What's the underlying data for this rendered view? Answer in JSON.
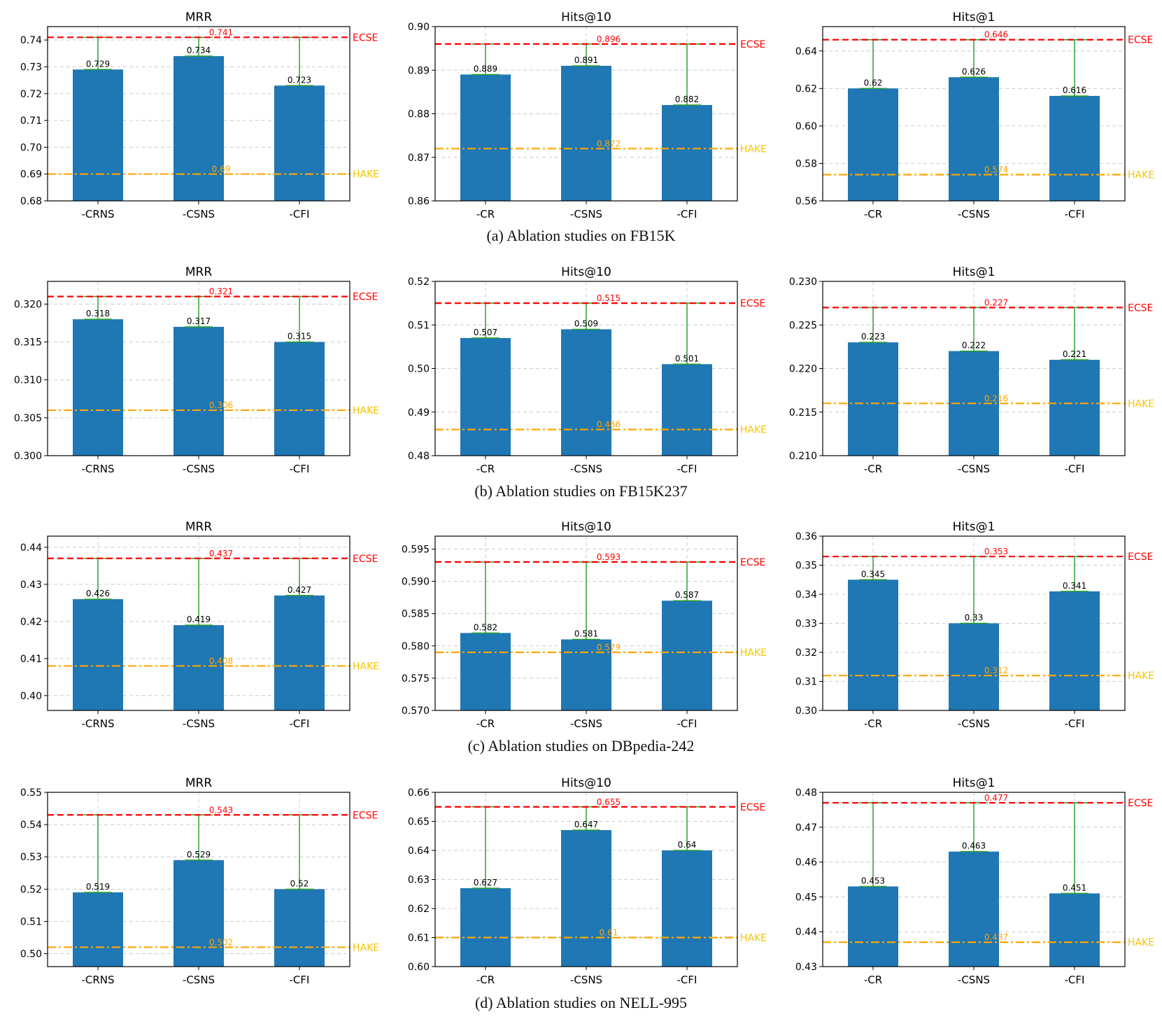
{
  "colors": {
    "bar": "#1f77b4",
    "ecse": "#ff0000",
    "hake": "#ffa500",
    "hake_label": "#f5c400",
    "error": "#2ca02c",
    "grid": "#cccccc"
  },
  "captions": [
    "(a) Ablation studies on FB15K",
    "(b) Ablation studies on FB15K237",
    "(c) Ablation studies on DBpedia-242",
    "(d) Ablation studies on NELL-995"
  ],
  "chart_data": [
    {
      "type": "bar",
      "title": "MRR",
      "categories": [
        "-CRNS",
        "-CSNS",
        "-CFI"
      ],
      "values": [
        0.729,
        0.734,
        0.723
      ],
      "value_labels": [
        "0.729",
        "0.734",
        "0.723"
      ],
      "ylim": [
        0.68,
        0.745
      ],
      "yticks": [
        "0.68",
        "0.69",
        "0.70",
        "0.71",
        "0.72",
        "0.73",
        "0.74"
      ],
      "reference_lines": [
        {
          "name": "ECSE",
          "value": 0.741,
          "label": "0.741"
        },
        {
          "name": "HAKE",
          "value": 0.69,
          "label": "0.69"
        }
      ],
      "grid": true
    },
    {
      "type": "bar",
      "title": "Hits@10",
      "categories": [
        "-CR",
        "-CSNS",
        "-CFI"
      ],
      "values": [
        0.889,
        0.891,
        0.882
      ],
      "value_labels": [
        "0.889",
        "0.891",
        "0.882"
      ],
      "ylim": [
        0.86,
        0.9
      ],
      "yticks": [
        "0.86",
        "0.87",
        "0.88",
        "0.89",
        "0.90"
      ],
      "reference_lines": [
        {
          "name": "ECSE",
          "value": 0.896,
          "label": "0.896"
        },
        {
          "name": "HAKE",
          "value": 0.872,
          "label": "0.872"
        }
      ],
      "grid": true
    },
    {
      "type": "bar",
      "title": "Hits@1",
      "categories": [
        "-CR",
        "-CSNS",
        "-CFI"
      ],
      "values": [
        0.62,
        0.626,
        0.616
      ],
      "value_labels": [
        "0.62",
        "0.626",
        "0.616"
      ],
      "ylim": [
        0.56,
        0.653
      ],
      "yticks": [
        "0.56",
        "0.58",
        "0.60",
        "0.62",
        "0.64"
      ],
      "reference_lines": [
        {
          "name": "ECSE",
          "value": 0.646,
          "label": "0.646"
        },
        {
          "name": "HAKE",
          "value": 0.574,
          "label": "0.574"
        }
      ],
      "grid": true
    },
    {
      "type": "bar",
      "title": "MRR",
      "categories": [
        "-CRNS",
        "-CSNS",
        "-CFI"
      ],
      "values": [
        0.318,
        0.317,
        0.315
      ],
      "value_labels": [
        "0.318",
        "0.317",
        "0.315"
      ],
      "ylim": [
        0.3,
        0.323
      ],
      "yticks": [
        "0.300",
        "0.305",
        "0.310",
        "0.315",
        "0.320"
      ],
      "reference_lines": [
        {
          "name": "ECSE",
          "value": 0.321,
          "label": "0.321"
        },
        {
          "name": "HAKE",
          "value": 0.306,
          "label": "0.306"
        }
      ],
      "grid": true
    },
    {
      "type": "bar",
      "title": "Hits@10",
      "categories": [
        "-CR",
        "-CSNS",
        "-CFI"
      ],
      "values": [
        0.507,
        0.509,
        0.501
      ],
      "value_labels": [
        "0.507",
        "0.509",
        "0.501"
      ],
      "ylim": [
        0.48,
        0.52
      ],
      "yticks": [
        "0.48",
        "0.49",
        "0.50",
        "0.51",
        "0.52"
      ],
      "reference_lines": [
        {
          "name": "ECSE",
          "value": 0.515,
          "label": "0.515"
        },
        {
          "name": "HAKE",
          "value": 0.486,
          "label": "0.486"
        }
      ],
      "grid": true
    },
    {
      "type": "bar",
      "title": "Hits@1",
      "categories": [
        "-CR",
        "-CSNS",
        "-CFI"
      ],
      "values": [
        0.223,
        0.222,
        0.221
      ],
      "value_labels": [
        "0.223",
        "0.222",
        "0.221"
      ],
      "ylim": [
        0.21,
        0.23
      ],
      "yticks": [
        "0.210",
        "0.215",
        "0.220",
        "0.225",
        "0.230"
      ],
      "reference_lines": [
        {
          "name": "ECSE",
          "value": 0.227,
          "label": "0.227"
        },
        {
          "name": "HAKE",
          "value": 0.216,
          "label": "0.216"
        }
      ],
      "grid": true
    },
    {
      "type": "bar",
      "title": "MRR",
      "categories": [
        "-CRNS",
        "-CSNS",
        "-CFI"
      ],
      "values": [
        0.426,
        0.419,
        0.427
      ],
      "value_labels": [
        "0.426",
        "0.419",
        "0.427"
      ],
      "ylim": [
        0.396,
        0.443
      ],
      "yticks": [
        "0.40",
        "0.41",
        "0.42",
        "0.43",
        "0.44"
      ],
      "reference_lines": [
        {
          "name": "ECSE",
          "value": 0.437,
          "label": "0.437"
        },
        {
          "name": "HAKE",
          "value": 0.408,
          "label": "0.408"
        }
      ],
      "grid": true
    },
    {
      "type": "bar",
      "title": "Hits@10",
      "categories": [
        "-CR",
        "-CSNS",
        "-CFI"
      ],
      "values": [
        0.582,
        0.581,
        0.587
      ],
      "value_labels": [
        "0.582",
        "0.581",
        "0.587"
      ],
      "ylim": [
        0.57,
        0.597
      ],
      "yticks": [
        "0.570",
        "0.575",
        "0.580",
        "0.585",
        "0.590",
        "0.595"
      ],
      "reference_lines": [
        {
          "name": "ECSE",
          "value": 0.593,
          "label": "0.593"
        },
        {
          "name": "HAKE",
          "value": 0.579,
          "label": "0.579"
        }
      ],
      "grid": true
    },
    {
      "type": "bar",
      "title": "Hits@1",
      "categories": [
        "-CR",
        "-CSNS",
        "-CFI"
      ],
      "values": [
        0.345,
        0.33,
        0.341
      ],
      "value_labels": [
        "0.345",
        "0.33",
        "0.341"
      ],
      "ylim": [
        0.3,
        0.36
      ],
      "yticks": [
        "0.30",
        "0.31",
        "0.32",
        "0.33",
        "0.34",
        "0.35",
        "0.36"
      ],
      "reference_lines": [
        {
          "name": "ECSE",
          "value": 0.353,
          "label": "0.353"
        },
        {
          "name": "HAKE",
          "value": 0.312,
          "label": "0.312"
        }
      ],
      "grid": true
    },
    {
      "type": "bar",
      "title": "MRR",
      "categories": [
        "-CRNS",
        "-CSNS",
        "-CFI"
      ],
      "values": [
        0.519,
        0.529,
        0.52
      ],
      "value_labels": [
        "0.519",
        "0.529",
        "0.52"
      ],
      "ylim": [
        0.496,
        0.55
      ],
      "yticks": [
        "0.50",
        "0.51",
        "0.52",
        "0.53",
        "0.54",
        "0.55"
      ],
      "reference_lines": [
        {
          "name": "ECSE",
          "value": 0.543,
          "label": "0.543"
        },
        {
          "name": "HAKE",
          "value": 0.502,
          "label": "0.502"
        }
      ],
      "grid": true
    },
    {
      "type": "bar",
      "title": "Hits@10",
      "categories": [
        "-CR",
        "-CSNS",
        "-CFI"
      ],
      "values": [
        0.627,
        0.647,
        0.64
      ],
      "value_labels": [
        "0.627",
        "0.647",
        "0.64"
      ],
      "ylim": [
        0.6,
        0.66
      ],
      "yticks": [
        "0.60",
        "0.61",
        "0.62",
        "0.63",
        "0.64",
        "0.65",
        "0.66"
      ],
      "reference_lines": [
        {
          "name": "ECSE",
          "value": 0.655,
          "label": "0.655"
        },
        {
          "name": "HAKE",
          "value": 0.61,
          "label": "0.61"
        }
      ],
      "grid": true
    },
    {
      "type": "bar",
      "title": "Hits@1",
      "categories": [
        "-CR",
        "-CSNS",
        "-CFI"
      ],
      "values": [
        0.453,
        0.463,
        0.451
      ],
      "value_labels": [
        "0.453",
        "0.463",
        "0.451"
      ],
      "ylim": [
        0.43,
        0.48
      ],
      "yticks": [
        "0.43",
        "0.44",
        "0.45",
        "0.46",
        "0.47",
        "0.48"
      ],
      "reference_lines": [
        {
          "name": "ECSE",
          "value": 0.477,
          "label": "0.477"
        },
        {
          "name": "HAKE",
          "value": 0.437,
          "label": "0.437"
        }
      ],
      "grid": true
    }
  ]
}
